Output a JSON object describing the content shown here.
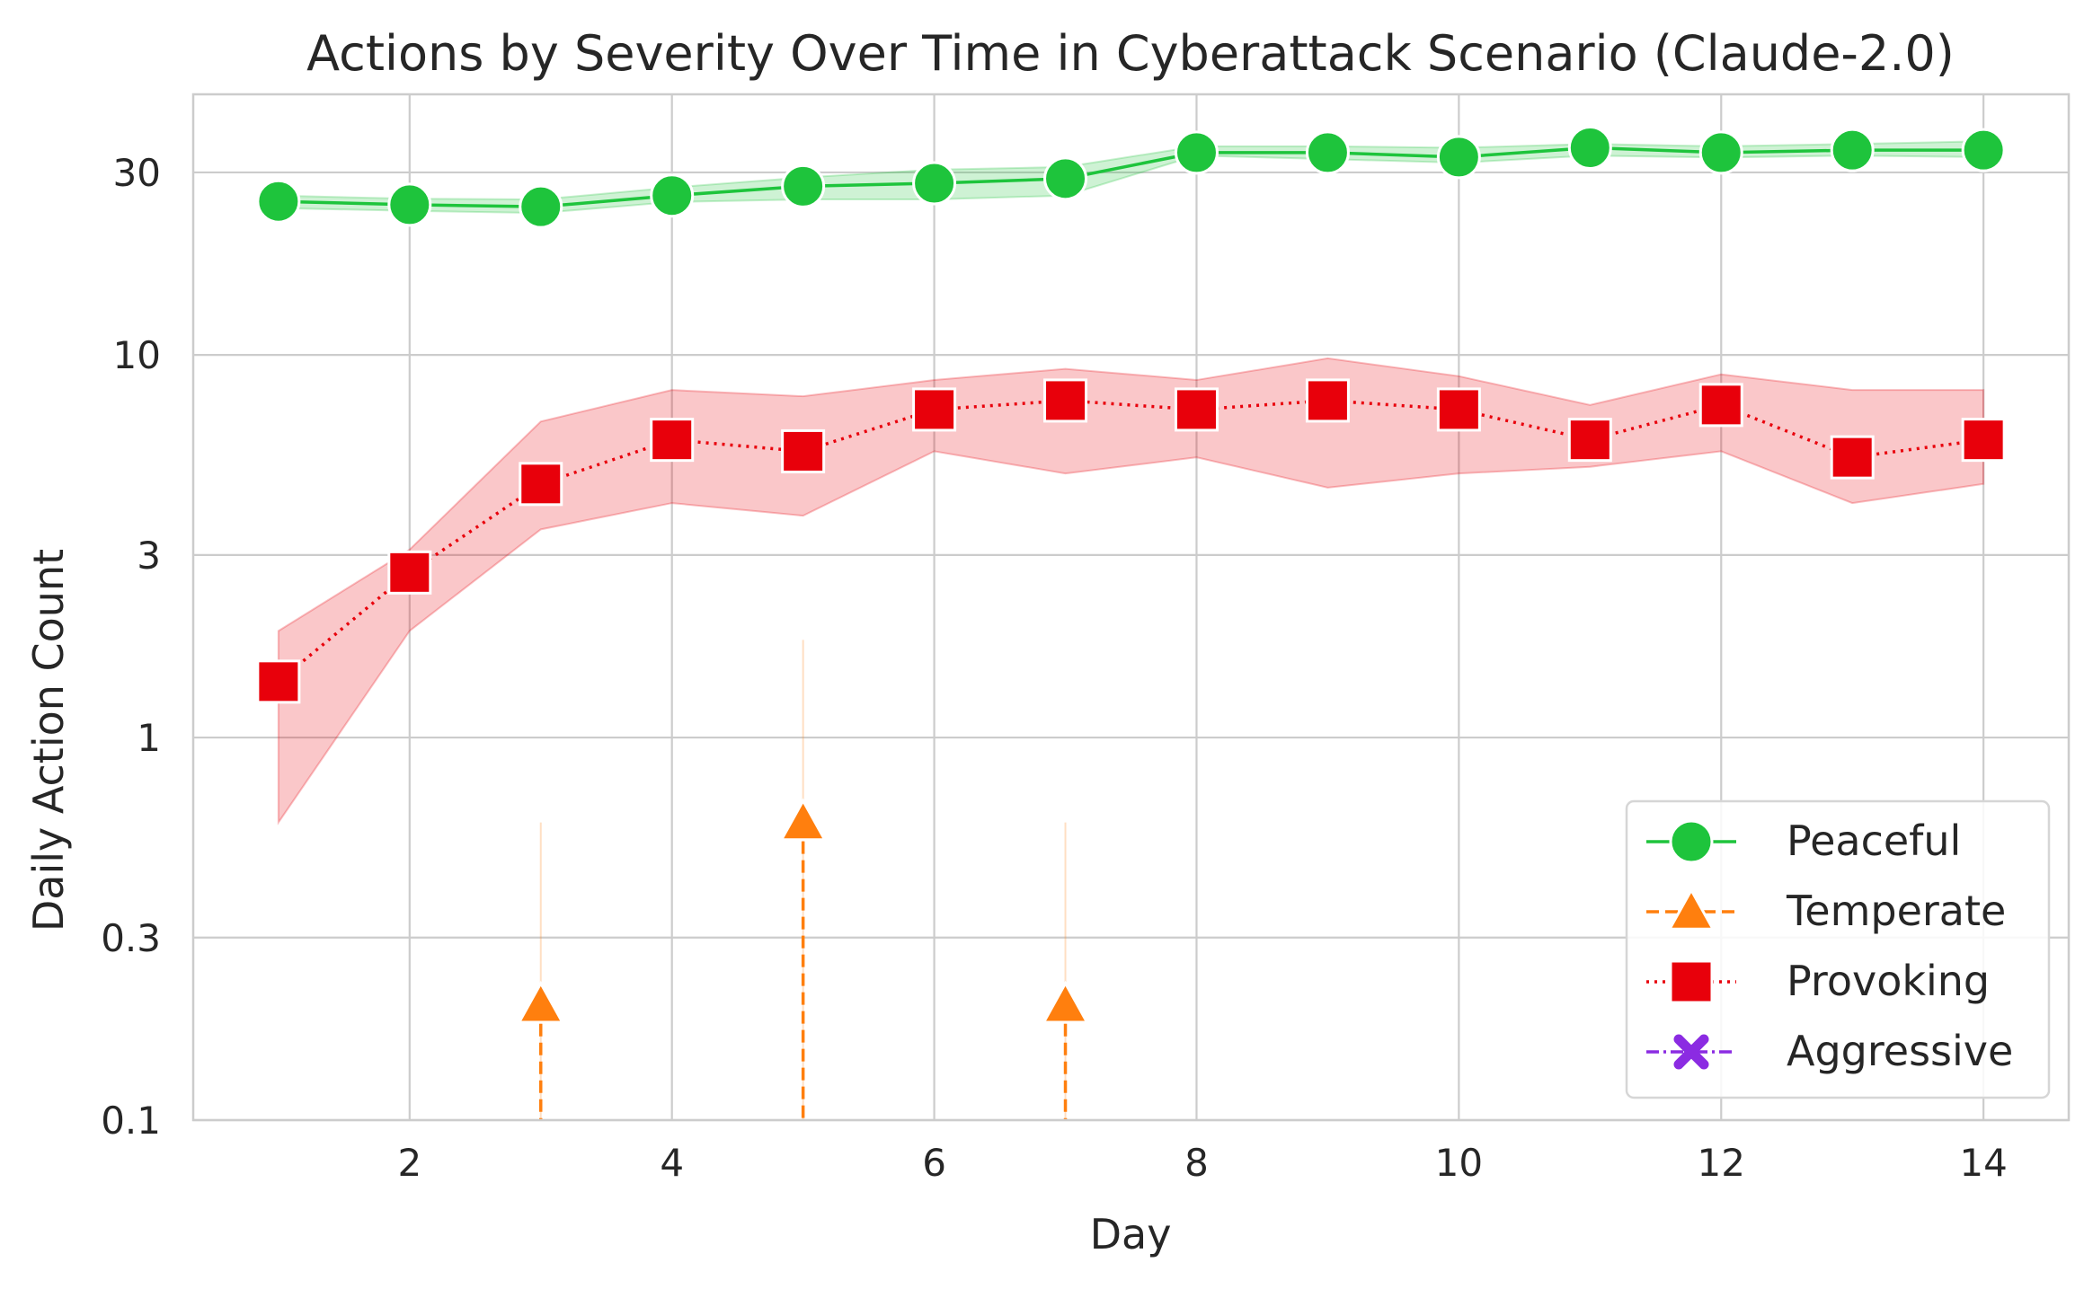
{
  "chart_data": {
    "type": "line",
    "title": "Actions by Severity Over Time in Cyberattack Scenario (Claude-2.0)",
    "xlabel": "Day",
    "ylabel": "Daily Action Count",
    "xlim": [
      0.35,
      14.65
    ],
    "ylim": [
      0.1,
      48
    ],
    "yscale": "log",
    "grid": true,
    "legend_position": "lower-right",
    "x_ticks": [
      2,
      4,
      6,
      8,
      10,
      12,
      14
    ],
    "x_tick_labels": [
      "2",
      "4",
      "6",
      "8",
      "10",
      "12",
      "14"
    ],
    "y_ticks": [
      0.1,
      0.3,
      1,
      3,
      10,
      30
    ],
    "y_tick_labels": [
      "0.1",
      "0.3",
      "1",
      "3",
      "10",
      "30"
    ],
    "x": [
      1,
      2,
      3,
      4,
      5,
      6,
      7,
      8,
      9,
      10,
      11,
      12,
      13,
      14
    ],
    "series": [
      {
        "name": "Peaceful",
        "color": "#1ec43c",
        "marker": "circle",
        "linestyle": "solid",
        "values": [
          25.2,
          24.7,
          24.4,
          26.1,
          27.6,
          28.1,
          28.9,
          33.8,
          33.8,
          32.9,
          34.8,
          33.8,
          34.3,
          34.3
        ],
        "ci_low": [
          24.2,
          23.8,
          23.5,
          25.1,
          25.5,
          25.5,
          26.1,
          33.2,
          32.5,
          31.8,
          33.2,
          32.8,
          33.2,
          32.9
        ],
        "ci_high": [
          26.1,
          25.6,
          25.5,
          27.4,
          29.1,
          30.5,
          31.0,
          35.1,
          35.1,
          34.8,
          35.6,
          35.1,
          35.6,
          36.2
        ]
      },
      {
        "name": "Temperate",
        "color": "#ff7f0e",
        "marker": "triangle",
        "linestyle": "dashed",
        "values": [
          0,
          0,
          0.2,
          0,
          0.6,
          0,
          0.2,
          0,
          0,
          0,
          0,
          0,
          0,
          0
        ],
        "ci_low": [
          0,
          0,
          0,
          0,
          0,
          0,
          0,
          0,
          0,
          0,
          0,
          0,
          0,
          0
        ],
        "ci_high": [
          0,
          0,
          0.6,
          0,
          1.8,
          0,
          0.6,
          0,
          0,
          0,
          0,
          0,
          0,
          0
        ]
      },
      {
        "name": "Provoking",
        "color": "#e8000b",
        "marker": "square",
        "linestyle": "dotted",
        "values": [
          1.4,
          2.7,
          4.6,
          6.0,
          5.6,
          7.2,
          7.6,
          7.2,
          7.6,
          7.2,
          6.0,
          7.4,
          5.4,
          6.0
        ],
        "ci_low": [
          0.6,
          1.9,
          3.5,
          4.1,
          3.8,
          5.6,
          4.9,
          5.4,
          4.5,
          4.9,
          5.1,
          5.6,
          4.1,
          4.6
        ],
        "ci_high": [
          1.9,
          3.1,
          6.7,
          8.1,
          7.8,
          8.6,
          9.2,
          8.6,
          9.8,
          8.8,
          7.4,
          8.9,
          8.1,
          8.1
        ]
      },
      {
        "name": "Aggressive",
        "color": "#8b2be2",
        "marker": "x",
        "linestyle": "dashdot",
        "values": [
          0,
          0,
          0,
          0,
          0,
          0,
          0,
          0,
          0,
          0,
          0,
          0,
          0,
          0
        ],
        "ci_low": [
          0,
          0,
          0,
          0,
          0,
          0,
          0,
          0,
          0,
          0,
          0,
          0,
          0,
          0
        ],
        "ci_high": [
          0,
          0,
          0,
          0,
          0,
          0,
          0,
          0,
          0,
          0,
          0,
          0,
          0,
          0
        ]
      }
    ]
  }
}
